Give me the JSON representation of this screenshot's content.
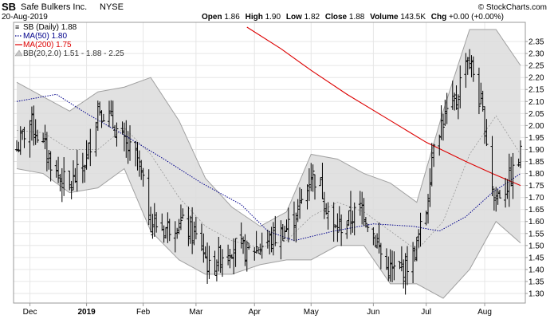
{
  "header": {
    "symbol": "SB",
    "company": "Safe Bulkers Inc.",
    "exchange": "NYSE",
    "date": "20-Aug-2019",
    "open_label": "Open",
    "open": "1.86",
    "high_label": "High",
    "high": "1.90",
    "low_label": "Low",
    "low": "1.82",
    "close_label": "Close",
    "close": "1.88",
    "volume_label": "Volume",
    "volume": "143.5K",
    "chg_label": "Chg",
    "chg": "+0.00 (+0.00%)",
    "watermark": "© StockCharts.com"
  },
  "legend": [
    {
      "text": "SB (Daily) 1.88",
      "color": "#000000"
    },
    {
      "text": "MA(50) 1.80",
      "color": "#00008b"
    },
    {
      "text": "MA(200) 1.75",
      "color": "#dd0000"
    },
    {
      "text": "BB(20,2.0) 1.51 - 1.88 - 2.25",
      "color": "#333333"
    }
  ],
  "colors": {
    "price_bar": "#000000",
    "ma50": "#00008b",
    "ma200": "#dd0000",
    "bb_fill": "#dcdcdc",
    "bb_edge": "#a0a0a0",
    "bb_mid": "#999999",
    "grid": "#e6e6e6"
  },
  "chart_data": {
    "type": "ohlc",
    "title": "SB Safe Bulkers Inc. NYSE",
    "y_axis_position": "right",
    "ylim": [
      1.26,
      2.43
    ],
    "y_ticks": [
      1.3,
      1.35,
      1.4,
      1.45,
      1.5,
      1.55,
      1.6,
      1.65,
      1.7,
      1.75,
      1.8,
      1.85,
      1.9,
      1.95,
      2.0,
      2.05,
      2.1,
      2.15,
      2.2,
      2.25,
      2.3,
      2.35
    ],
    "x_start": "2018-11-26",
    "x_end": "2019-08-20",
    "x_ticks": [
      {
        "date": "2018-12-03",
        "label": "Dec",
        "bold": false
      },
      {
        "date": "2019-01-02",
        "label": "2019",
        "bold": true
      },
      {
        "date": "2019-02-01",
        "label": "Feb",
        "bold": false
      },
      {
        "date": "2019-03-01",
        "label": "Mar",
        "bold": false
      },
      {
        "date": "2019-04-01",
        "label": "Apr",
        "bold": false
      },
      {
        "date": "2019-05-01",
        "label": "May",
        "bold": false
      },
      {
        "date": "2019-06-03",
        "label": "Jun",
        "bold": false
      },
      {
        "date": "2019-07-01",
        "label": "Jul",
        "bold": false
      },
      {
        "date": "2019-08-01",
        "label": "Aug",
        "bold": false
      }
    ],
    "price_anchors": [
      {
        "date": "2018-11-26",
        "close": 1.9
      },
      {
        "date": "2018-12-03",
        "close": 2.02
      },
      {
        "date": "2018-12-10",
        "close": 1.92
      },
      {
        "date": "2018-12-17",
        "close": 1.8
      },
      {
        "date": "2018-12-24",
        "close": 1.74
      },
      {
        "date": "2019-01-02",
        "close": 1.86
      },
      {
        "date": "2019-01-08",
        "close": 2.08
      },
      {
        "date": "2019-01-15",
        "close": 2.02
      },
      {
        "date": "2019-01-22",
        "close": 1.92
      },
      {
        "date": "2019-01-29",
        "close": 1.86
      },
      {
        "date": "2019-02-05",
        "close": 1.6
      },
      {
        "date": "2019-02-12",
        "close": 1.57
      },
      {
        "date": "2019-02-20",
        "close": 1.6
      },
      {
        "date": "2019-02-27",
        "close": 1.55
      },
      {
        "date": "2019-03-04",
        "close": 1.5
      },
      {
        "date": "2019-03-08",
        "close": 1.4
      },
      {
        "date": "2019-03-14",
        "close": 1.46
      },
      {
        "date": "2019-03-21",
        "close": 1.5
      },
      {
        "date": "2019-03-28",
        "close": 1.47
      },
      {
        "date": "2019-04-04",
        "close": 1.5
      },
      {
        "date": "2019-04-11",
        "close": 1.53
      },
      {
        "date": "2019-04-18",
        "close": 1.57
      },
      {
        "date": "2019-04-25",
        "close": 1.66
      },
      {
        "date": "2019-05-01",
        "close": 1.8
      },
      {
        "date": "2019-05-06",
        "close": 1.75
      },
      {
        "date": "2019-05-13",
        "close": 1.56
      },
      {
        "date": "2019-05-20",
        "close": 1.6
      },
      {
        "date": "2019-05-28",
        "close": 1.66
      },
      {
        "date": "2019-06-03",
        "close": 1.55
      },
      {
        "date": "2019-06-10",
        "close": 1.4
      },
      {
        "date": "2019-06-17",
        "close": 1.39
      },
      {
        "date": "2019-06-24",
        "close": 1.45
      },
      {
        "date": "2019-07-01",
        "close": 1.65
      },
      {
        "date": "2019-07-05",
        "close": 1.95
      },
      {
        "date": "2019-07-12",
        "close": 2.05
      },
      {
        "date": "2019-07-17",
        "close": 2.1
      },
      {
        "date": "2019-07-22",
        "close": 2.3
      },
      {
        "date": "2019-07-26",
        "close": 2.22
      },
      {
        "date": "2019-08-01",
        "close": 2.0
      },
      {
        "date": "2019-08-06",
        "close": 1.7
      },
      {
        "date": "2019-08-12",
        "close": 1.74
      },
      {
        "date": "2019-08-16",
        "close": 1.8
      },
      {
        "date": "2019-08-20",
        "close": 1.88
      }
    ],
    "ma50": [
      {
        "date": "2018-11-26",
        "value": 2.1
      },
      {
        "date": "2018-12-17",
        "value": 2.13
      },
      {
        "date": "2019-01-02",
        "value": 2.05
      },
      {
        "date": "2019-01-22",
        "value": 1.96
      },
      {
        "date": "2019-02-12",
        "value": 1.86
      },
      {
        "date": "2019-03-04",
        "value": 1.76
      },
      {
        "date": "2019-03-25",
        "value": 1.67
      },
      {
        "date": "2019-04-08",
        "value": 1.56
      },
      {
        "date": "2019-04-22",
        "value": 1.52
      },
      {
        "date": "2019-05-13",
        "value": 1.56
      },
      {
        "date": "2019-06-03",
        "value": 1.59
      },
      {
        "date": "2019-06-24",
        "value": 1.58
      },
      {
        "date": "2019-07-08",
        "value": 1.56
      },
      {
        "date": "2019-07-22",
        "value": 1.62
      },
      {
        "date": "2019-08-05",
        "value": 1.72
      },
      {
        "date": "2019-08-20",
        "value": 1.8
      }
    ],
    "ma200": [
      {
        "date": "2019-03-28",
        "value": 2.41
      },
      {
        "date": "2019-04-15",
        "value": 2.32
      },
      {
        "date": "2019-05-01",
        "value": 2.23
      },
      {
        "date": "2019-05-20",
        "value": 2.13
      },
      {
        "date": "2019-06-10",
        "value": 2.03
      },
      {
        "date": "2019-07-01",
        "value": 1.93
      },
      {
        "date": "2019-07-22",
        "value": 1.85
      },
      {
        "date": "2019-08-05",
        "value": 1.8
      },
      {
        "date": "2019-08-20",
        "value": 1.75
      }
    ],
    "bb": [
      {
        "date": "2018-11-26",
        "upper": 2.18,
        "mid": 1.98,
        "lower": 1.82
      },
      {
        "date": "2018-12-10",
        "upper": 2.12,
        "mid": 1.97,
        "lower": 1.8
      },
      {
        "date": "2018-12-24",
        "upper": 2.06,
        "mid": 1.9,
        "lower": 1.72
      },
      {
        "date": "2019-01-08",
        "upper": 2.14,
        "mid": 1.9,
        "lower": 1.74
      },
      {
        "date": "2019-01-22",
        "upper": 2.16,
        "mid": 1.99,
        "lower": 1.82
      },
      {
        "date": "2019-02-05",
        "upper": 2.2,
        "mid": 1.88,
        "lower": 1.56
      },
      {
        "date": "2019-02-20",
        "upper": 2.02,
        "mid": 1.7,
        "lower": 1.44
      },
      {
        "date": "2019-03-06",
        "upper": 1.78,
        "mid": 1.58,
        "lower": 1.38
      },
      {
        "date": "2019-03-20",
        "upper": 1.66,
        "mid": 1.52,
        "lower": 1.38
      },
      {
        "date": "2019-04-04",
        "upper": 1.58,
        "mid": 1.49,
        "lower": 1.42
      },
      {
        "date": "2019-04-18",
        "upper": 1.64,
        "mid": 1.52,
        "lower": 1.44
      },
      {
        "date": "2019-05-01",
        "upper": 1.88,
        "mid": 1.62,
        "lower": 1.44
      },
      {
        "date": "2019-05-15",
        "upper": 1.86,
        "mid": 1.68,
        "lower": 1.5
      },
      {
        "date": "2019-05-29",
        "upper": 1.8,
        "mid": 1.64,
        "lower": 1.5
      },
      {
        "date": "2019-06-12",
        "upper": 1.76,
        "mid": 1.56,
        "lower": 1.34
      },
      {
        "date": "2019-06-26",
        "upper": 1.68,
        "mid": 1.48,
        "lower": 1.34
      },
      {
        "date": "2019-07-10",
        "upper": 2.06,
        "mid": 1.6,
        "lower": 1.28
      },
      {
        "date": "2019-07-24",
        "upper": 2.4,
        "mid": 1.88,
        "lower": 1.4
      },
      {
        "date": "2019-08-07",
        "upper": 2.4,
        "mid": 2.04,
        "lower": 1.6
      },
      {
        "date": "2019-08-20",
        "upper": 2.25,
        "mid": 1.88,
        "lower": 1.51
      }
    ]
  }
}
